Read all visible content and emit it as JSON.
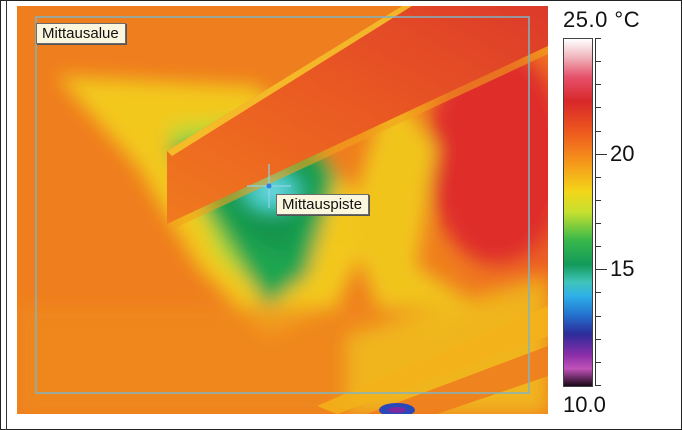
{
  "measurement": {
    "area_label": "Mittausalue",
    "spot_label": "Mittauspiste"
  },
  "scale": {
    "max_label": "25.0 °C",
    "min_label": "10.0",
    "max_value": 25.0,
    "min_value": 10.0,
    "ticks": [
      {
        "label": "20",
        "value": 20
      },
      {
        "label": "15",
        "value": 15
      }
    ]
  },
  "colors": {
    "hot": "#d8282a",
    "warm": "#f59a1a",
    "mid": "#f3d61a",
    "cool": "#139a5a",
    "cold": "#2fb0e8",
    "measurement_box": "#7fb4c4"
  },
  "icons": {
    "crosshair": "crosshair-icon"
  }
}
